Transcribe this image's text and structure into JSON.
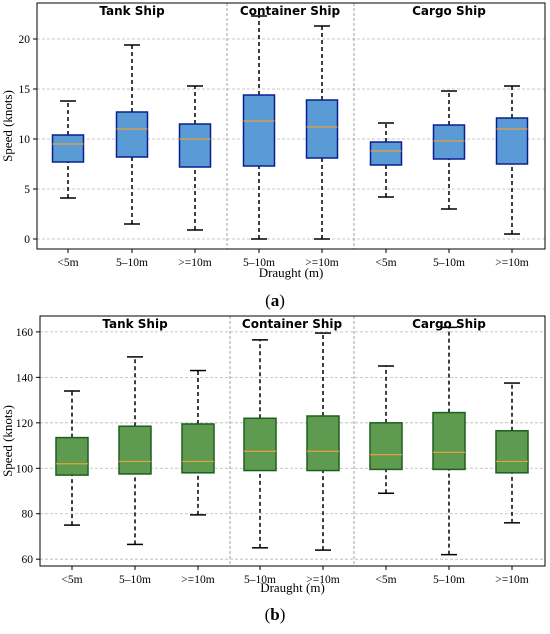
{
  "chart_data": [
    {
      "type": "box",
      "panel_label": "a",
      "group_titles": [
        "Tank Ship",
        "Container Ship",
        "Cargo Ship"
      ],
      "xlabel": "Draught (m)",
      "ylabel": "Speed (knots)",
      "ylim": [
        -1,
        23.6
      ],
      "yticks": [
        0,
        5,
        10,
        15,
        20
      ],
      "grid": true,
      "box_color": "#5b9bd5",
      "edge_color": "#0a1f8f",
      "median_color": "#e8a13a",
      "boxes": [
        {
          "group": "Tank Ship",
          "category": "<5m",
          "whisker_low": 4.1,
          "q1": 7.7,
          "median": 9.5,
          "q3": 10.4,
          "whisker_high": 13.8
        },
        {
          "group": "Tank Ship",
          "category": "5–10m",
          "whisker_low": 1.5,
          "q1": 8.2,
          "median": 11.0,
          "q3": 12.7,
          "whisker_high": 19.4
        },
        {
          "group": "Tank Ship",
          "category": ">=10m",
          "whisker_low": 0.9,
          "q1": 7.2,
          "median": 10.0,
          "q3": 11.5,
          "whisker_high": 15.3
        },
        {
          "group": "Container Ship",
          "category": "5–10m",
          "whisker_low": 0.0,
          "q1": 7.3,
          "median": 11.8,
          "q3": 14.4,
          "whisker_high": 22.3
        },
        {
          "group": "Container Ship",
          "category": ">=10m",
          "whisker_low": 0.0,
          "q1": 8.1,
          "median": 11.2,
          "q3": 13.9,
          "whisker_high": 21.3
        },
        {
          "group": "Cargo Ship",
          "category": "<5m",
          "whisker_low": 4.2,
          "q1": 7.4,
          "median": 8.8,
          "q3": 9.7,
          "whisker_high": 11.6
        },
        {
          "group": "Cargo Ship",
          "category": "5–10m",
          "whisker_low": 3.0,
          "q1": 8.0,
          "median": 9.8,
          "q3": 11.4,
          "whisker_high": 14.8
        },
        {
          "group": "Cargo Ship",
          "category": ">=10m",
          "whisker_low": 0.5,
          "q1": 7.5,
          "median": 11.0,
          "q3": 12.1,
          "whisker_high": 15.3
        }
      ]
    },
    {
      "type": "box",
      "panel_label": "b",
      "group_titles": [
        "Tank Ship",
        "Container Ship",
        "Cargo Ship"
      ],
      "xlabel": "Draught (m)",
      "ylabel": "Speed (knots)",
      "ylim": [
        57,
        167
      ],
      "yticks": [
        60,
        80,
        100,
        120,
        140,
        160
      ],
      "grid": true,
      "box_color": "#5e9a4f",
      "edge_color": "#1e5e1e",
      "median_color": "#e8a13a",
      "boxes": [
        {
          "group": "Tank Ship",
          "category": "<5m",
          "whisker_low": 75,
          "q1": 97,
          "median": 102,
          "q3": 113.5,
          "whisker_high": 134
        },
        {
          "group": "Tank Ship",
          "category": "5–10m",
          "whisker_low": 66.5,
          "q1": 97.5,
          "median": 103,
          "q3": 118.5,
          "whisker_high": 149
        },
        {
          "group": "Tank Ship",
          "category": ">=10m",
          "whisker_low": 79.5,
          "q1": 98,
          "median": 103,
          "q3": 119.5,
          "whisker_high": 143
        },
        {
          "group": "Container Ship",
          "category": "5–10m",
          "whisker_low": 65,
          "q1": 99,
          "median": 107.5,
          "q3": 122,
          "whisker_high": 156.5
        },
        {
          "group": "Container Ship",
          "category": ">=10m",
          "whisker_low": 64,
          "q1": 99,
          "median": 107.5,
          "q3": 123,
          "whisker_high": 159.5
        },
        {
          "group": "Cargo Ship",
          "category": "<5m",
          "whisker_low": 89,
          "q1": 99.5,
          "median": 106,
          "q3": 120,
          "whisker_high": 145
        },
        {
          "group": "Cargo Ship",
          "category": "5–10m",
          "whisker_low": 62,
          "q1": 99.5,
          "median": 107,
          "q3": 124.5,
          "whisker_high": 162
        },
        {
          "group": "Cargo Ship",
          "category": ">=10m",
          "whisker_low": 76,
          "q1": 98,
          "median": 103,
          "q3": 116.5,
          "whisker_high": 137.5
        }
      ]
    }
  ]
}
